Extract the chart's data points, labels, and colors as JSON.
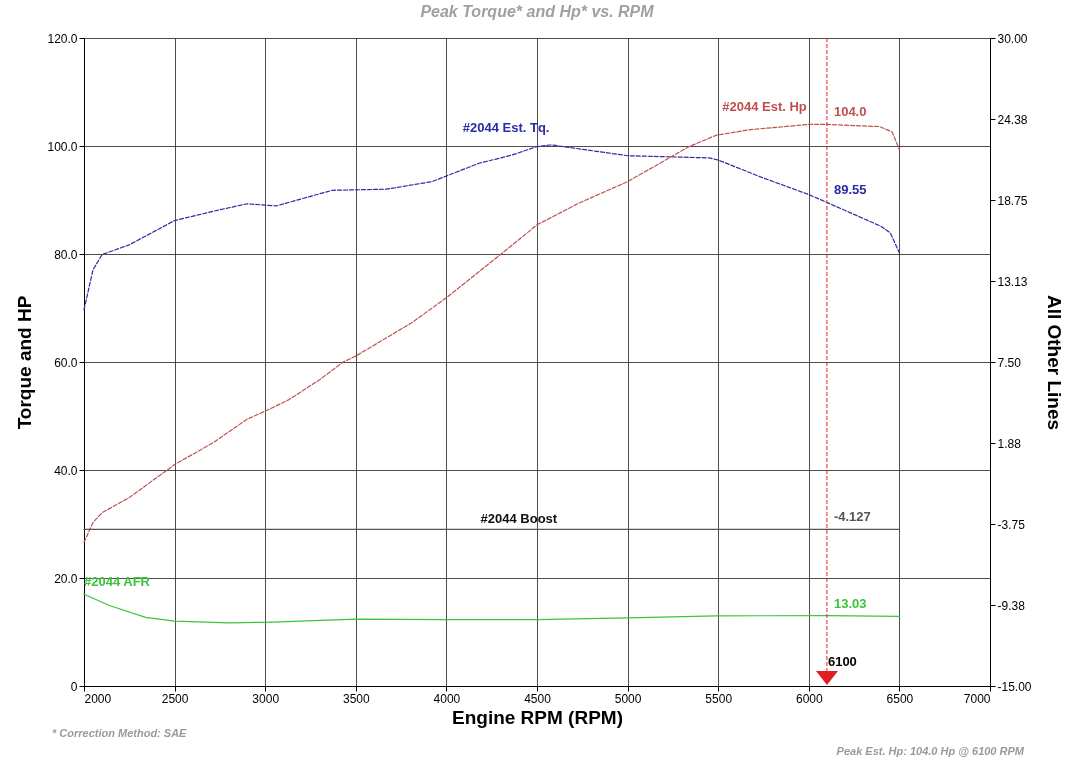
{
  "chart_data": {
    "type": "line",
    "title": "Peak Torque* and Hp* vs. RPM",
    "xlabel": "Engine RPM (RPM)",
    "ylabel": "Torque and HP",
    "y2label": "All Other Lines",
    "xlim": [
      2000,
      7000
    ],
    "xticks": [
      2000,
      2500,
      3000,
      3500,
      4000,
      4500,
      5000,
      5500,
      6000,
      6500,
      7000
    ],
    "ylim": [
      0,
      120
    ],
    "yticks": [
      {
        "value": 0,
        "label": "0"
      },
      {
        "value": 20,
        "label": "20.0"
      },
      {
        "value": 40,
        "label": "40.0"
      },
      {
        "value": 60,
        "label": "60.0"
      },
      {
        "value": 80,
        "label": "80.0"
      },
      {
        "value": 100,
        "label": "100.0"
      },
      {
        "value": 120,
        "label": "120.0"
      }
    ],
    "y2lim": [
      -15,
      30
    ],
    "y2ticks": [
      {
        "value": -15,
        "label": "-15.00"
      },
      {
        "value": -9.375,
        "label": "-9.38"
      },
      {
        "value": -3.75,
        "label": "-3.75"
      },
      {
        "value": 1.875,
        "label": "1.88"
      },
      {
        "value": 7.5,
        "label": "7.50"
      },
      {
        "value": 13.125,
        "label": "13.13"
      },
      {
        "value": 18.75,
        "label": "18.75"
      },
      {
        "value": 24.375,
        "label": "24.38"
      },
      {
        "value": 30,
        "label": "30.00"
      }
    ],
    "grid": true,
    "series": [
      {
        "name": "#2044 Est. Tq.",
        "color": "#2b2ba6",
        "line_style": "dashed",
        "x": [
          2000,
          2050,
          2100,
          2250,
          2500,
          2750,
          2900,
          3060,
          3370,
          3670,
          3920,
          4180,
          4360,
          4500,
          4580,
          5000,
          5450,
          5500,
          5740,
          6000,
          6100,
          6400,
          6450,
          6500
        ],
        "values": [
          69.7,
          77.1,
          79.9,
          81.7,
          86.2,
          88.2,
          89.3,
          88.9,
          91.8,
          92.0,
          93.4,
          96.8,
          98.3,
          99.9,
          100.2,
          98.2,
          97.8,
          97.4,
          94.2,
          91.0,
          89.55,
          85.1,
          83.9,
          80.2
        ],
        "value_labels": [
          null,
          null,
          null,
          null,
          null,
          null,
          null,
          null,
          null,
          null,
          null,
          null,
          null,
          null,
          null,
          null,
          null,
          null,
          null,
          null,
          "89.55",
          null,
          null,
          null
        ]
      },
      {
        "name": "#2044 Est. Hp",
        "color": "#c0504d",
        "line_style": "dashed",
        "x": [
          2000,
          2050,
          2100,
          2250,
          2500,
          2710,
          2900,
          3000,
          3130,
          3300,
          3430,
          3500,
          3810,
          4000,
          4310,
          4500,
          4730,
          5000,
          5340,
          5490,
          5670,
          6000,
          6100,
          6390,
          6460,
          6500
        ],
        "values": [
          26.6,
          30.3,
          32.1,
          34.9,
          41.0,
          45.0,
          49.4,
          50.9,
          53.0,
          56.7,
          60.0,
          61.1,
          67.3,
          71.9,
          80.2,
          85.4,
          89.4,
          93.4,
          99.9,
          102.0,
          103.0,
          104.0,
          104.0,
          103.6,
          102.6,
          99.3
        ],
        "value_labels": [
          null,
          null,
          null,
          null,
          null,
          null,
          null,
          null,
          null,
          null,
          null,
          null,
          null,
          null,
          null,
          null,
          null,
          null,
          null,
          null,
          null,
          null,
          "104.0",
          null,
          null,
          null
        ]
      },
      {
        "name": "#2044 AFR",
        "color": "#3cc43c",
        "x": [
          2000,
          2140,
          2340,
          2500,
          2800,
          3000,
          3500,
          4000,
          4500,
          5000,
          5490,
          6100,
          6500
        ],
        "values": [
          17.0,
          14.9,
          12.7,
          12.0,
          11.7,
          11.8,
          12.4,
          12.3,
          12.3,
          12.6,
          13.0,
          13.03,
          12.9
        ],
        "value_labels": [
          null,
          null,
          null,
          null,
          null,
          null,
          null,
          null,
          null,
          null,
          null,
          "13.03",
          null
        ]
      },
      {
        "name": "#2044 Boost",
        "color": "#555555",
        "axis": "y2",
        "x": [
          2000,
          6100,
          6500
        ],
        "values": [
          -4.127,
          -4.127,
          -4.127
        ],
        "value_labels": [
          null,
          "-4.127",
          null
        ]
      }
    ],
    "ref_lines": [
      {
        "axis": "x",
        "value": 6100,
        "label": "6100",
        "color": "#e02020",
        "line_style": "dashed"
      }
    ],
    "annotations": [
      "* Correction Method: SAE",
      "Peak Est. Hp: 104.0 Hp @ 6100 RPM"
    ]
  }
}
